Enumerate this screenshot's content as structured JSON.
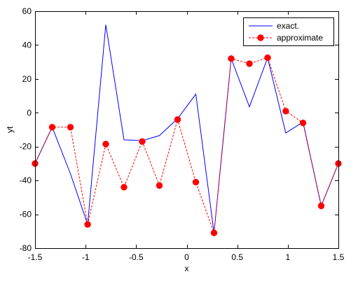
{
  "chart_data": {
    "type": "line",
    "title": "",
    "xlabel": "x",
    "ylabel": "yt",
    "xlim": [
      -1.5,
      1.5
    ],
    "ylim": [
      -80,
      60
    ],
    "xticks": [
      -1.5,
      -1,
      -0.5,
      0,
      0.5,
      1,
      1.5
    ],
    "xtick_labels": [
      "-1.5",
      "-1",
      "-0.5",
      "0",
      "0.5",
      "1",
      "1.5"
    ],
    "yticks": [
      -80,
      -60,
      -40,
      -20,
      0,
      20,
      40,
      60
    ],
    "ytick_labels": [
      "-80",
      "-60",
      "-40",
      "-20",
      "0",
      "20",
      "40",
      "60"
    ],
    "grid": false,
    "legend_position": "top-right",
    "series": [
      {
        "name": "exact.",
        "color": "#0000ff",
        "style": "solid",
        "marker": "none",
        "x": [
          -1.5,
          -1.33,
          -1.15,
          -0.98,
          -0.8,
          -0.62,
          -0.44,
          -0.27,
          -0.09,
          0.09,
          0.27,
          0.44,
          0.62,
          0.8,
          0.98,
          1.15,
          1.33,
          1.5
        ],
        "y": [
          -30,
          -8.5,
          -36,
          -66,
          52,
          -16,
          -16.5,
          -13.5,
          -3.5,
          11,
          -71,
          32,
          3.5,
          32.5,
          -12,
          -5.5,
          -55,
          -30
        ]
      },
      {
        "name": "approximate",
        "color": "#ff0000",
        "style": "dashed",
        "marker": "circle",
        "x": [
          -1.5,
          -1.33,
          -1.15,
          -0.98,
          -0.8,
          -0.62,
          -0.44,
          -0.27,
          -0.09,
          0.09,
          0.27,
          0.44,
          0.62,
          0.8,
          0.98,
          1.15,
          1.33,
          1.5
        ],
        "y": [
          -30,
          -8.5,
          -8.5,
          -66,
          -18.5,
          -44,
          -17,
          -43,
          -4,
          -41,
          -71,
          32,
          29,
          32.5,
          1,
          -6,
          -55,
          -30
        ]
      }
    ]
  }
}
